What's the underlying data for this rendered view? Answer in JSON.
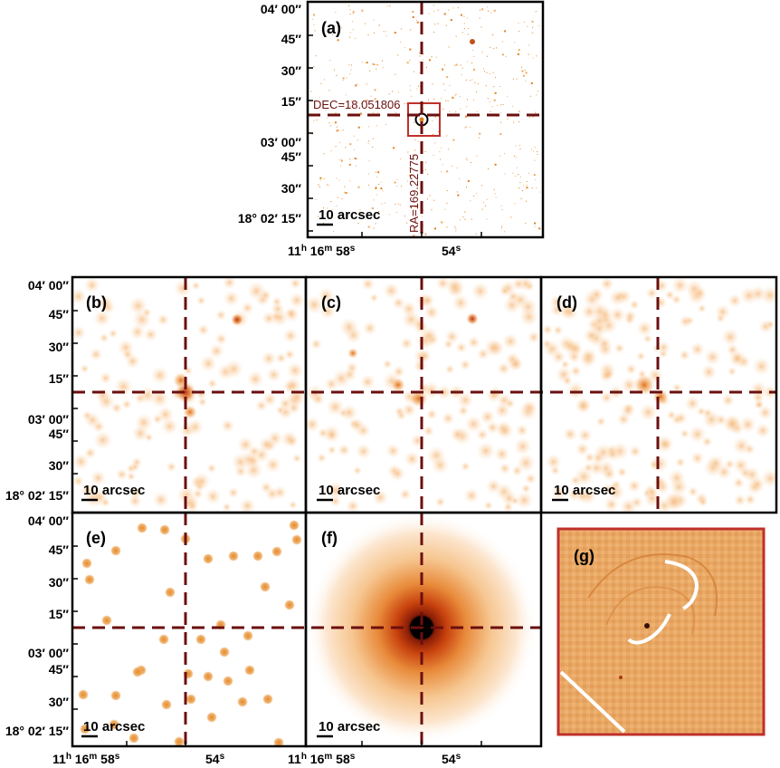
{
  "panels": {
    "a": "(a)",
    "b": "(b)",
    "c": "(c)",
    "d": "(d)",
    "e": "(e)",
    "f": "(f)",
    "g": "(g)"
  },
  "scale_bar_label": "10 arcsec",
  "annotations": {
    "dec": "DEC=18.051806",
    "ra": "RA=169.22775"
  },
  "dec_ticks": {
    "d0400": "04′ 00″",
    "s45": "45″",
    "s30": "30″",
    "s15": "15″",
    "d0300": "03′ 00″",
    "d180215": "18° 02′ 15″"
  },
  "ra_ticks": {
    "h_part": "11",
    "h_sup": "h",
    "m_part": " 16",
    "m_sup": "m",
    "s_part": " 58",
    "s_sup": "s",
    "s54": "54",
    "s54_sup": "s"
  },
  "colors": {
    "crosshair": "#6b0f0f",
    "box": "#c0302a",
    "speckle": "#e0801a",
    "frame": "#000000"
  }
}
